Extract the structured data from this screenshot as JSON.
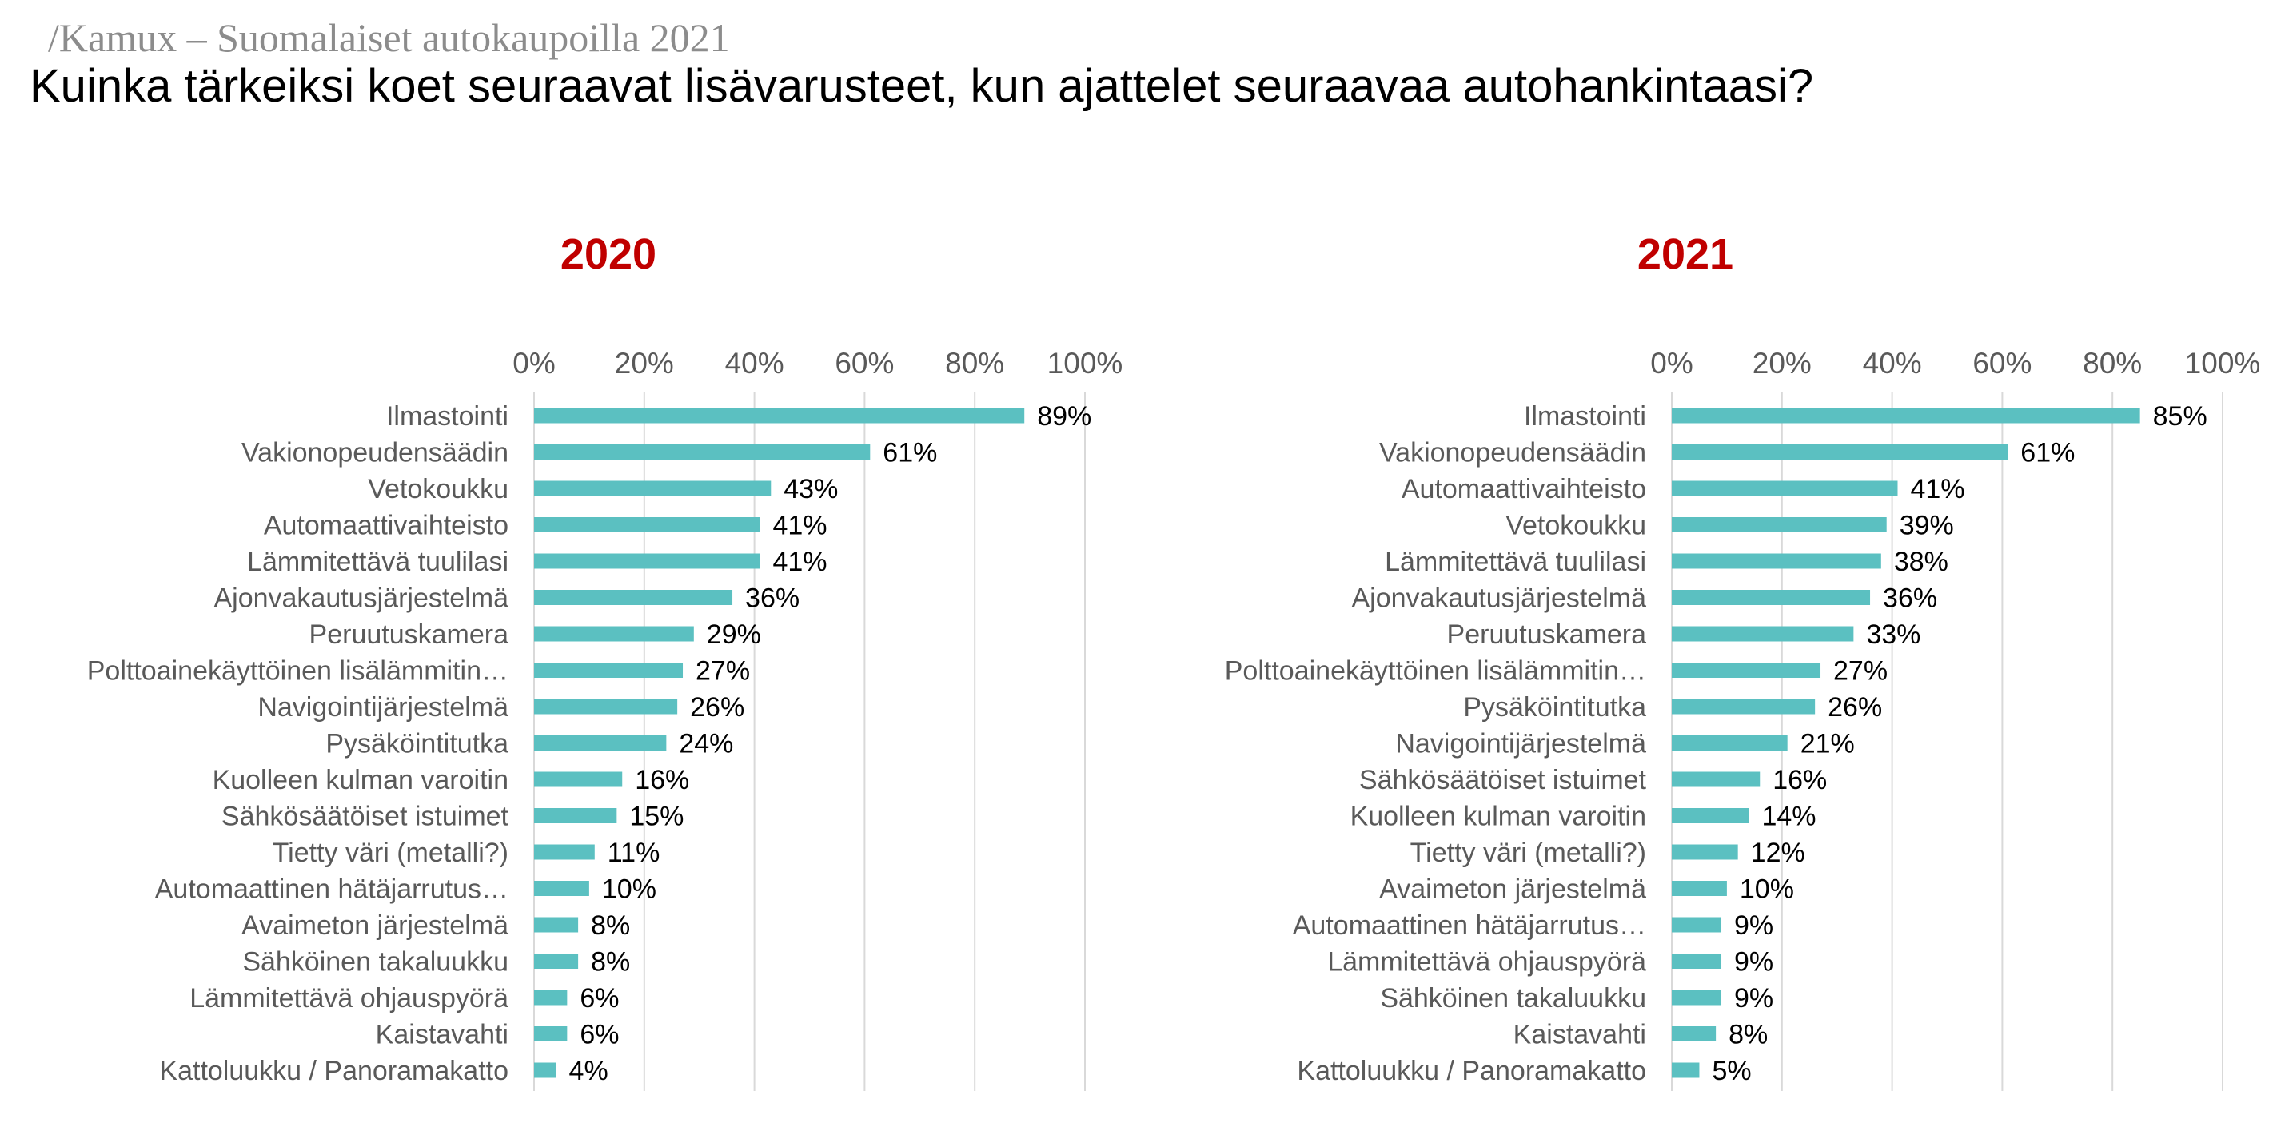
{
  "header": {
    "breadcrumb": "/Kamux – Suomalaiset autokaupoilla 2021",
    "title": "Kuinka tärkeiksi koet seuraavat lisävarusteet, kun ajattelet seuraavaa autohankintaasi?"
  },
  "colors": {
    "bar": "#5bc0c1",
    "year_title": "#c00000",
    "grid": "#d9d9d9"
  },
  "chart_data": [
    {
      "type": "bar",
      "orientation": "horizontal",
      "title": "2020",
      "xlim": [
        0,
        100
      ],
      "ticks": [
        "0%",
        "20%",
        "40%",
        "60%",
        "80%",
        "100%"
      ],
      "grid": true,
      "value_suffix": "%",
      "categories": [
        "Ilmastointi",
        "Vakionopeudensäädin",
        "Vetokoukku",
        "Automaattivaihteisto",
        "Lämmitettävä tuulilasi",
        "Ajonvakautusjärjestelmä",
        "Peruutuskamera",
        "Polttoainekäyttöinen lisälämmitin…",
        "Navigointijärjestelmä",
        "Pysäköintitutka",
        "Kuolleen kulman varoitin",
        "Sähkösäätöiset istuimet",
        "Tietty väri (metalli?)",
        "Automaattinen hätäjarrutus…",
        "Avaimeton järjestelmä",
        "Sähköinen takaluukku",
        "Lämmitettävä ohjauspyörä",
        "Kaistavahti",
        "Kattoluukku / Panoramakatto"
      ],
      "values": [
        89,
        61,
        43,
        41,
        41,
        36,
        29,
        27,
        26,
        24,
        16,
        15,
        11,
        10,
        8,
        8,
        6,
        6,
        4
      ]
    },
    {
      "type": "bar",
      "orientation": "horizontal",
      "title": "2021",
      "xlim": [
        0,
        100
      ],
      "ticks": [
        "0%",
        "20%",
        "40%",
        "60%",
        "80%",
        "100%"
      ],
      "grid": true,
      "value_suffix": "%",
      "categories": [
        "Ilmastointi",
        "Vakionopeudensäädin",
        "Automaattivaihteisto",
        "Vetokoukku",
        "Lämmitettävä tuulilasi",
        "Ajonvakautusjärjestelmä",
        "Peruutuskamera",
        "Polttoainekäyttöinen lisälämmitin…",
        "Pysäköintitutka",
        "Navigointijärjestelmä",
        "Sähkösäätöiset istuimet",
        "Kuolleen kulman varoitin",
        "Tietty väri (metalli?)",
        "Avaimeton järjestelmä",
        "Automaattinen hätäjarrutus…",
        "Lämmitettävä ohjauspyörä",
        "Sähköinen takaluukku",
        "Kaistavahti",
        "Kattoluukku / Panoramakatto"
      ],
      "values": [
        85,
        61,
        41,
        39,
        38,
        36,
        33,
        27,
        26,
        21,
        16,
        14,
        12,
        10,
        9,
        9,
        9,
        8,
        5
      ]
    }
  ]
}
